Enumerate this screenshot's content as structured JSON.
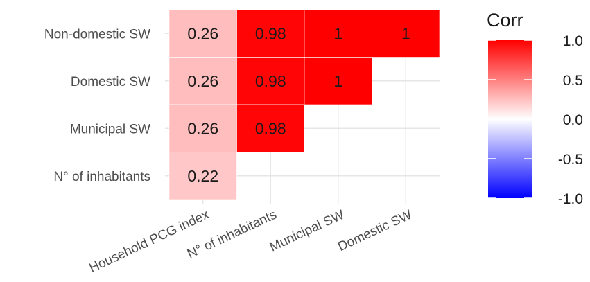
{
  "chart_data": {
    "type": "heatmap",
    "title": "",
    "xlabel": "",
    "ylabel": "",
    "x_categories": [
      "Household PCG index",
      "N° of inhabitants",
      "Municipal SW",
      "Domestic SW"
    ],
    "y_categories": [
      "Non-domestic SW",
      "Domestic SW",
      "Municipal SW",
      "N° of inhabitants"
    ],
    "cells": [
      {
        "x": "Household PCG index",
        "y": "Non-domestic SW",
        "value": 0.26
      },
      {
        "x": "N° of inhabitants",
        "y": "Non-domestic SW",
        "value": 0.98
      },
      {
        "x": "Municipal SW",
        "y": "Non-domestic SW",
        "value": 1
      },
      {
        "x": "Domestic SW",
        "y": "Non-domestic SW",
        "value": 1
      },
      {
        "x": "Household PCG index",
        "y": "Domestic SW",
        "value": 0.26
      },
      {
        "x": "N° of inhabitants",
        "y": "Domestic SW",
        "value": 0.98
      },
      {
        "x": "Municipal SW",
        "y": "Domestic SW",
        "value": 1
      },
      {
        "x": "Household PCG index",
        "y": "Municipal SW",
        "value": 0.26
      },
      {
        "x": "N° of inhabitants",
        "y": "Municipal SW",
        "value": 0.98
      },
      {
        "x": "Household PCG index",
        "y": "N° of inhabitants",
        "value": 0.22
      }
    ],
    "legend": {
      "title": "Corr",
      "ticks": [
        "1.0",
        "0.5",
        "0.0",
        "-0.5",
        "-1.0"
      ],
      "range": [
        -1,
        1
      ],
      "colors": {
        "low": "#0000ff",
        "mid": "#ffffff",
        "high": "#ff0000"
      }
    },
    "grid": true
  }
}
